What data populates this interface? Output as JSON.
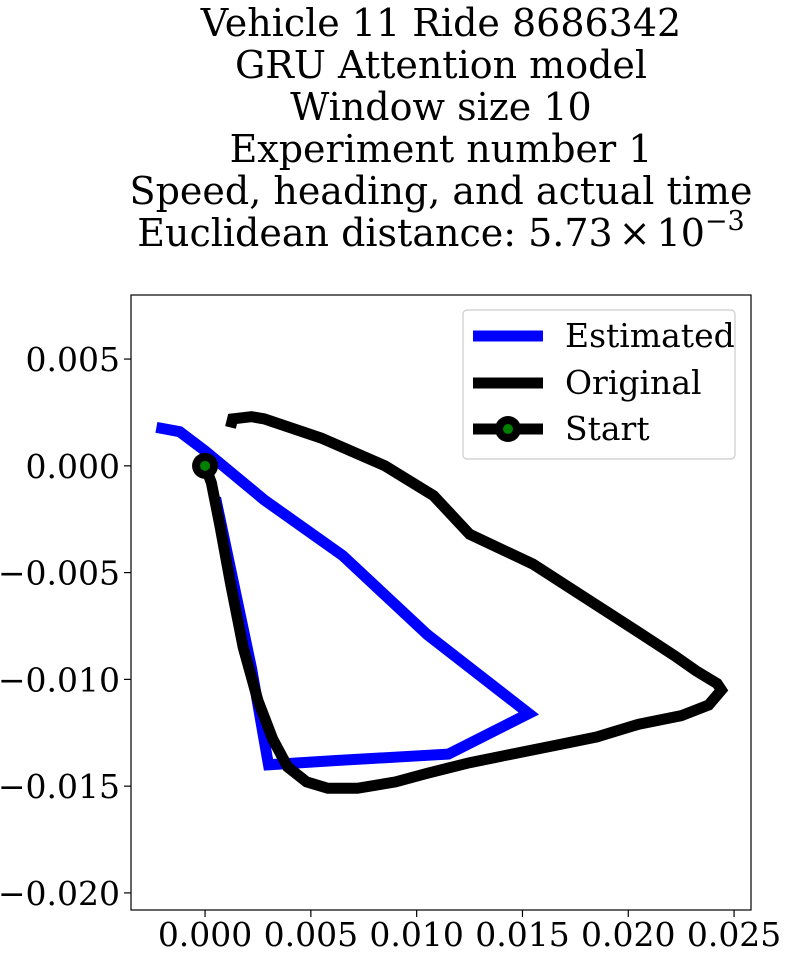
{
  "chart_data": {
    "type": "line",
    "title_lines": [
      "Vehicle 11 Ride 8686342",
      "GRU Attention model",
      "Window size 10",
      "Experiment number 1",
      "Speed, heading, and actual time"
    ],
    "title_distance_prefix": "Euclidean distance: 5.73",
    "title_distance_times": "×",
    "title_distance_base": "10",
    "title_distance_exp": "−3",
    "xlabel": "",
    "ylabel": "",
    "xlim": [
      -0.0035,
      0.0258
    ],
    "ylim": [
      -0.0208,
      0.008
    ],
    "xticks": [
      0.0,
      0.005,
      0.01,
      0.015,
      0.02,
      0.025
    ],
    "xtick_labels": [
      "0.000",
      "0.005",
      "0.010",
      "0.015",
      "0.020",
      "0.025"
    ],
    "yticks": [
      0.005,
      0.0,
      -0.005,
      -0.01,
      -0.015,
      -0.02
    ],
    "ytick_labels": [
      "0.005",
      "0.000",
      "−0.005",
      "−0.010",
      "−0.015",
      "−0.020"
    ],
    "legend_position": "top-right",
    "series": [
      {
        "name": "Estimated",
        "color": "#0000ff",
        "x": [
          -0.0023,
          -0.0012,
          0.0,
          0.0028,
          0.0065,
          0.0105,
          0.0153,
          0.0115,
          0.0062,
          0.003,
          0.0022,
          0.0005
        ],
        "y": [
          0.0018,
          0.0016,
          0.0007,
          -0.0016,
          -0.0042,
          -0.0079,
          -0.0116,
          -0.0135,
          -0.0138,
          -0.014,
          -0.0095,
          -0.0015
        ]
      },
      {
        "name": "Original",
        "color": "#000000",
        "x": [
          0.0012,
          0.0013,
          0.0022,
          0.0028,
          0.0055,
          0.0085,
          0.0108,
          0.0125,
          0.0155,
          0.018,
          0.0205,
          0.0222,
          0.0232,
          0.0242,
          0.0244,
          0.0238,
          0.0225,
          0.0205,
          0.0185,
          0.0165,
          0.0145,
          0.0125,
          0.0105,
          0.009,
          0.0072,
          0.0058,
          0.0048,
          0.0039,
          0.0032,
          0.0025,
          0.0018,
          0.0012,
          0.0007,
          0.0003,
          0.0
        ],
        "y": [
          0.0018,
          0.0022,
          0.0023,
          0.0022,
          0.0013,
          0.0,
          -0.0014,
          -0.0032,
          -0.0046,
          -0.0062,
          -0.0078,
          -0.0089,
          -0.0096,
          -0.0102,
          -0.0105,
          -0.0112,
          -0.0117,
          -0.0121,
          -0.0127,
          -0.0131,
          -0.0135,
          -0.0139,
          -0.0144,
          -0.0148,
          -0.0151,
          -0.0151,
          -0.0148,
          -0.0141,
          -0.0128,
          -0.011,
          -0.0085,
          -0.0055,
          -0.0028,
          -0.0008,
          0.0
        ]
      },
      {
        "name": "Start",
        "color": "#000000",
        "marker_fill": "#008000",
        "x": [
          0.0
        ],
        "y": [
          0.0
        ]
      }
    ]
  }
}
